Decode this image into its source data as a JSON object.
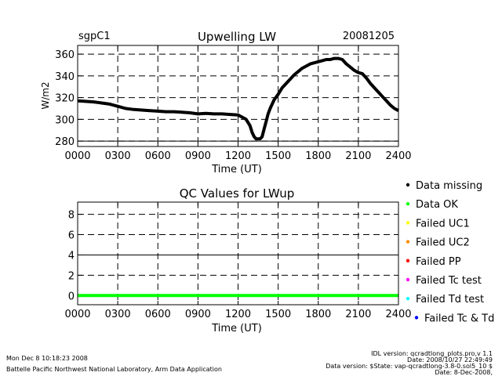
{
  "chart_data": [
    {
      "type": "line",
      "title": "Upwelling LW",
      "site_label": "sgpC1",
      "date_label": "20081205",
      "xlabel": "Time (UT)",
      "ylabel": "W/m2",
      "xlim": [
        0,
        2400
      ],
      "ylim": [
        275,
        368
      ],
      "x_ticks": [
        "0000",
        "0300",
        "0600",
        "0900",
        "1200",
        "1500",
        "1800",
        "2100",
        "2400"
      ],
      "y_ticks": [
        280,
        300,
        320,
        340,
        360
      ],
      "grid": "dashed",
      "series": [
        {
          "color": "#000000",
          "x": [
            0,
            60,
            120,
            180,
            240,
            300,
            360,
            420,
            480,
            540,
            600,
            660,
            720,
            780,
            840,
            900,
            960,
            1020,
            1080,
            1140,
            1200,
            1230,
            1260,
            1290,
            1305,
            1320,
            1335,
            1350,
            1365,
            1380,
            1395,
            1410,
            1425,
            1440,
            1470,
            1500,
            1530,
            1560,
            1590,
            1620,
            1650,
            1680,
            1710,
            1740,
            1770,
            1800,
            1830,
            1860,
            1890,
            1920,
            1950,
            1980,
            2010,
            2040,
            2070,
            2100,
            2130,
            2160,
            2190,
            2220,
            2250,
            2280,
            2310,
            2340,
            2370,
            2400
          ],
          "y": [
            317,
            316.5,
            316,
            315,
            314,
            312,
            310,
            309,
            308.5,
            308,
            307.5,
            307,
            307,
            306.5,
            306,
            305,
            305.5,
            305,
            305,
            304.5,
            304,
            302,
            300,
            294,
            288,
            284,
            282,
            282,
            282,
            284,
            291,
            298,
            305,
            310,
            318,
            323,
            329,
            333,
            337,
            341,
            344,
            347,
            349,
            351,
            352,
            353,
            354,
            355,
            355,
            356,
            356,
            355,
            351,
            348,
            345,
            343,
            342,
            338,
            333,
            329,
            325,
            321,
            317,
            313,
            310,
            308
          ]
        }
      ]
    },
    {
      "type": "line",
      "title": "QC Values for LWup",
      "xlabel": "Time (UT)",
      "xlim": [
        0,
        2400
      ],
      "ylim": [
        -0.9,
        9.2
      ],
      "x_ticks": [
        "0000",
        "0300",
        "0600",
        "0900",
        "1200",
        "1500",
        "1800",
        "2100",
        "2400"
      ],
      "y_ticks": [
        0,
        2,
        4,
        6,
        8
      ],
      "grid": "dashed",
      "series": [
        {
          "color": "#00ff00",
          "x": [
            0,
            2400
          ],
          "y": [
            0,
            0
          ]
        }
      ],
      "legend": {
        "placement": "right",
        "entries": [
          {
            "label": "Data missing",
            "color": "#000000"
          },
          {
            "label": "Data OK",
            "color": "#00ff00"
          },
          {
            "label": "Failed UC1",
            "color": "#ffff00"
          },
          {
            "label": "Failed UC2",
            "color": "#ff8c00"
          },
          {
            "label": "Failed PP",
            "color": "#ff0000"
          },
          {
            "label": "Failed Tc test",
            "color": "#ff00ff"
          },
          {
            "label": "Failed Td test",
            "color": "#00ffff"
          },
          {
            "label": "Failed Tc & Td",
            "color": "#0000ff"
          }
        ]
      }
    }
  ],
  "footer": {
    "timestamp": "Mon Dec  8 10:18:23 2008",
    "institution": "Battelle Pacific Northwest National Laboratory, Arm Data Application",
    "idl_version": "IDL version: qcradtlong_plots.pro,v 1.1",
    "idl_date": "Date: 2008/10/27 22:49:49",
    "data_version": "Data version: $State: vap-qcradtlong-3.8-0.sol5_10 $",
    "data_date": "Date: 8-Dec-2008,"
  }
}
